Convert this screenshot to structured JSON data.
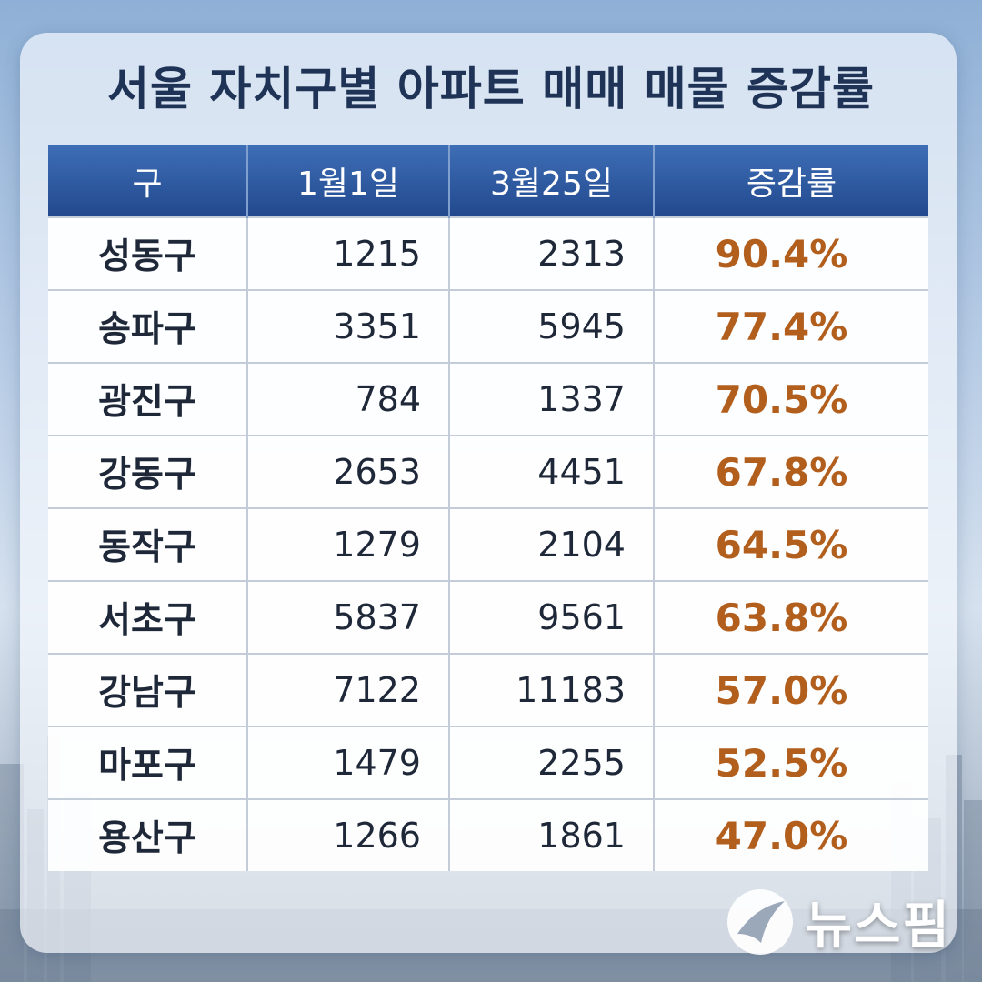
{
  "title": "서울 자치구별 아파트 매매 매물 증감률",
  "logo": {
    "text": "뉴스핌",
    "icon": "newspim-logo-icon"
  },
  "colors": {
    "header": "#2b5399",
    "rate": "#b25f1e",
    "title": "#1f3357"
  },
  "chart_data": {
    "type": "table",
    "columns": [
      "구",
      "1월1일",
      "3월25일",
      "증감률"
    ],
    "rows": [
      [
        "성동구",
        "1215",
        "2313",
        "90.4%"
      ],
      [
        "송파구",
        "3351",
        "5945",
        "77.4%"
      ],
      [
        "광진구",
        "784",
        "1337",
        "70.5%"
      ],
      [
        "강동구",
        "2653",
        "4451",
        "67.8%"
      ],
      [
        "동작구",
        "1279",
        "2104",
        "64.5%"
      ],
      [
        "서초구",
        "5837",
        "9561",
        "63.8%"
      ],
      [
        "강남구",
        "7122",
        "11183",
        "57.0%"
      ],
      [
        "마포구",
        "1479",
        "2255",
        "52.5%"
      ],
      [
        "용산구",
        "1266",
        "1861",
        "47.0%"
      ]
    ]
  }
}
